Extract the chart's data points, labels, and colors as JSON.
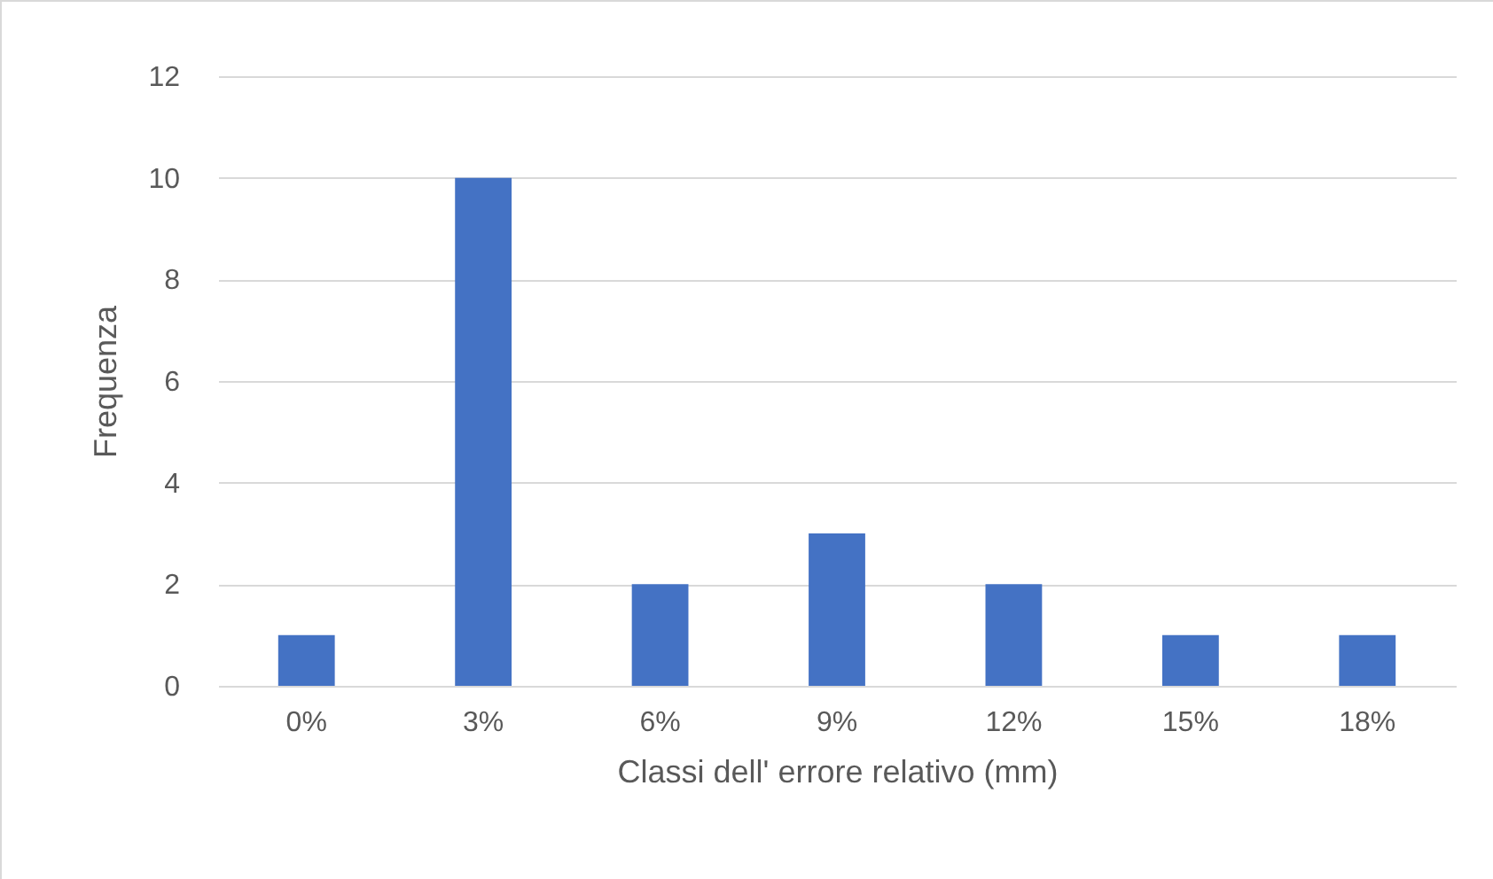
{
  "chart_data": {
    "type": "bar",
    "xlabel": "Classi dell' errore relativo (mm)",
    "ylabel": "Frequenza",
    "categories": [
      "0%",
      "3%",
      "6%",
      "9%",
      "12%",
      "15%",
      "18%"
    ],
    "values": [
      1,
      10,
      2,
      3,
      2,
      1,
      1
    ],
    "color": "#4472c4",
    "ylim": [
      0,
      12
    ],
    "yticks": [
      0,
      2,
      4,
      6,
      8,
      10,
      12
    ],
    "grid": "y"
  }
}
